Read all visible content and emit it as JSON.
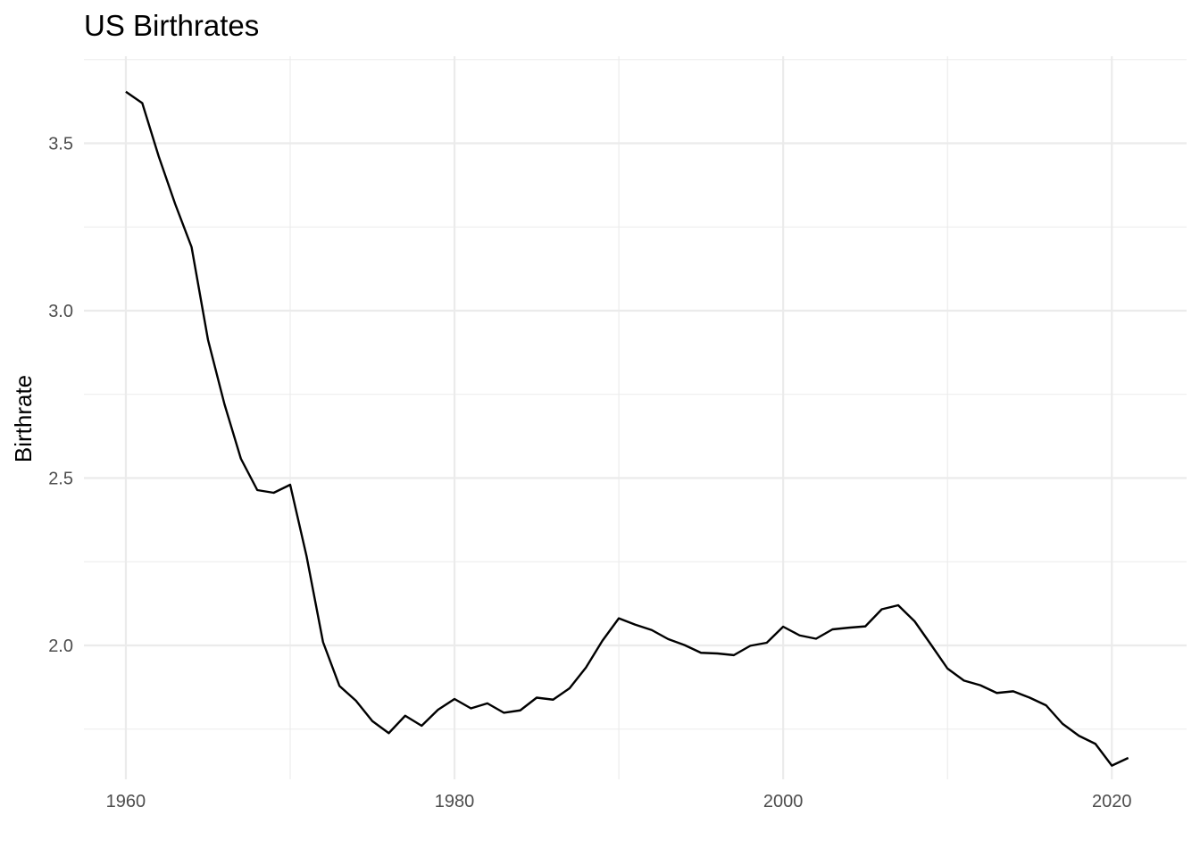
{
  "chart_data": {
    "type": "line",
    "title": "US Birthrates",
    "xlabel": "",
    "ylabel": "Birthrate",
    "xlim": [
      1957.45,
      11024.55
    ],
    "ylim": [
      1.6,
      3.76
    ],
    "x_ticks": [
      1960,
      1980,
      2000,
      2020
    ],
    "x_minor_ticks": [
      1970,
      1990,
      2010
    ],
    "y_ticks": [
      2.0,
      2.5,
      3.0,
      3.5
    ],
    "y_minor_ticks": [
      1.75,
      2.25,
      2.75,
      3.25,
      3.75
    ],
    "x_tick_labels": [
      "1960",
      "1980",
      "2000",
      "2020"
    ],
    "y_tick_labels": [
      "2.0",
      "2.5",
      "3.0",
      "3.5"
    ],
    "grid": true,
    "legend": "none",
    "line_color": "#000000",
    "series": [
      {
        "x": [
          1960,
          1961,
          1962,
          1963,
          1964,
          1965,
          1966,
          1967,
          1968,
          1969,
          1970,
          1971,
          1972,
          1973,
          1974,
          1975,
          1976,
          1977,
          1978,
          1979,
          1980,
          1981,
          1982,
          1983,
          1984,
          1985,
          1986,
          1987,
          1988,
          1989,
          1990,
          1991,
          1992,
          1993,
          1994,
          1995,
          1996,
          1997,
          1998,
          1999,
          2000,
          2001,
          2002,
          2003,
          2004,
          2005,
          2006,
          2007,
          2008,
          2009,
          2010,
          2011,
          2012,
          2013,
          2014,
          2015,
          2016,
          2017,
          2018,
          2019,
          2020,
          2021
        ],
        "values": [
          3.654,
          3.62,
          3.461,
          3.319,
          3.19,
          2.913,
          2.721,
          2.558,
          2.464,
          2.456,
          2.48,
          2.266,
          2.01,
          1.879,
          1.835,
          1.774,
          1.738,
          1.79,
          1.76,
          1.808,
          1.84,
          1.812,
          1.827,
          1.799,
          1.806,
          1.844,
          1.838,
          1.872,
          1.934,
          2.014,
          2.081,
          2.062,
          2.046,
          2.019,
          2.001,
          1.978,
          1.976,
          1.971,
          1.999,
          2.008,
          2.056,
          2.03,
          2.02,
          2.048,
          2.053,
          2.057,
          2.108,
          2.12,
          2.072,
          2.002,
          1.931,
          1.895,
          1.881,
          1.858,
          1.863,
          1.844,
          1.821,
          1.766,
          1.73,
          1.706,
          1.641,
          1.664
        ]
      }
    ]
  }
}
